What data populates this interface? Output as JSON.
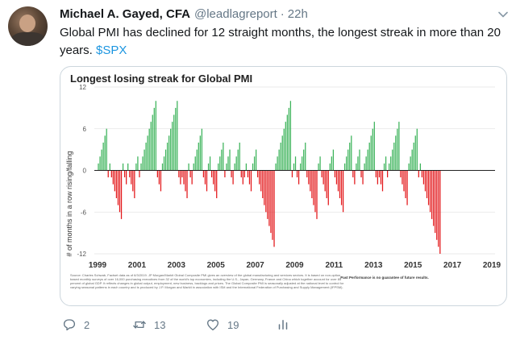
{
  "tweet": {
    "author_name": "Michael A. Gayed, CFA",
    "handle": "@leadlagreport",
    "separator": "·",
    "time": "22h",
    "text": "Global PMI has declined for 12 straight months, the longest streak in more than 20 years.",
    "cashtag": "$SPX"
  },
  "actions": {
    "reply_count": "2",
    "retweet_count": "13",
    "like_count": "19"
  },
  "icons": {
    "reply": "reply-icon",
    "retweet": "retweet-icon",
    "like": "heart-icon",
    "analytics": "analytics-icon",
    "more": "chevron-down-icon"
  },
  "colors": {
    "positive_bar": "#3cb35a",
    "negative_bar": "#e3181b",
    "link": "#1b95e0"
  },
  "chart_data": {
    "type": "bar",
    "title": "Longest losing streak for Global PMI",
    "ylabel": "# of months in a row rising/falling",
    "xlabel": "",
    "ylim": [
      -12,
      12
    ],
    "yticks": [
      12,
      6,
      0,
      -6,
      -12
    ],
    "xticks": [
      "1999",
      "2001",
      "2003",
      "2005",
      "2007",
      "2009",
      "2011",
      "2013",
      "2015",
      "2017",
      "2019"
    ],
    "x_start": "1999-01",
    "grid": true,
    "source_note": "Source: Charles Schwab, Factset data as of 6/3/2019. JP Morgan/Markit Global Composite PMI gives an overview of the global manufacturing and services sectors. It is based on non-option based monthly surveys of over 16,000 purchasing executives from 32 of the world's top economies, including the U.S., Japan, Germany, France and China which together account for over 85 percent of global GDP. It reflects changes in global output, employment, new business, backlogs and prices. The Global Composite PMI is seasonally adjusted at the national level to control for varying seasonal patterns in each country and is produced by J.P. Morgan and Markit in association with ISM and the International Federation of Purchasing and Supply Management (IFPSM).",
    "disclaimer": "Past Performance is no guarantee of future results.",
    "values": [
      1,
      2,
      3,
      4,
      5,
      6,
      -1,
      1,
      -1,
      -2,
      -3,
      -4,
      -5,
      -6,
      -7,
      1,
      -1,
      -2,
      1,
      -1,
      -2,
      -3,
      -4,
      1,
      2,
      -1,
      1,
      2,
      3,
      4,
      5,
      6,
      7,
      8,
      9,
      10,
      -1,
      -2,
      -3,
      1,
      2,
      3,
      4,
      5,
      6,
      7,
      8,
      9,
      10,
      -1,
      -2,
      -1,
      -2,
      -3,
      -4,
      1,
      -1,
      -2,
      1,
      2,
      3,
      4,
      5,
      6,
      -1,
      -2,
      -3,
      1,
      2,
      -1,
      -2,
      -3,
      -4,
      1,
      2,
      3,
      4,
      -1,
      1,
      2,
      3,
      -1,
      -2,
      1,
      2,
      3,
      4,
      -1,
      -2,
      -1,
      1,
      -1,
      -2,
      -3,
      1,
      2,
      3,
      -1,
      -2,
      -3,
      -4,
      -5,
      -6,
      -7,
      -8,
      -9,
      -10,
      -11,
      1,
      2,
      3,
      4,
      5,
      6,
      7,
      8,
      9,
      10,
      -1,
      1,
      2,
      -1,
      -2,
      1,
      2,
      3,
      4,
      -1,
      -2,
      -3,
      -4,
      -5,
      -6,
      -7,
      1,
      2,
      -1,
      -2,
      -3,
      -4,
      -5,
      1,
      2,
      3,
      -1,
      -2,
      -3,
      -4,
      -5,
      -6,
      1,
      2,
      3,
      4,
      5,
      -1,
      -2,
      1,
      2,
      3,
      -1,
      -2,
      1,
      2,
      3,
      4,
      5,
      6,
      7,
      -1,
      -2,
      -1,
      -2,
      -3,
      1,
      2,
      -1,
      1,
      2,
      3,
      4,
      5,
      6,
      7,
      -1,
      -2,
      -3,
      -4,
      -5,
      1,
      2,
      3,
      4,
      5,
      6,
      -1,
      1,
      -1,
      -2,
      -3,
      -4,
      -5,
      -6,
      -7,
      -8,
      -9,
      -10,
      -11,
      -12
    ]
  }
}
